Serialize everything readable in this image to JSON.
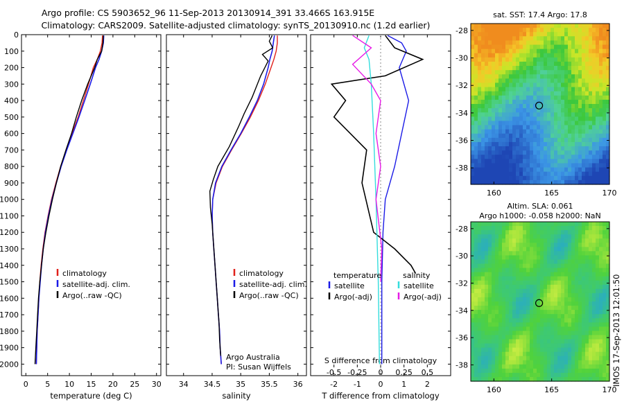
{
  "header": {
    "title_line1": "Argo profile: CS 5903652_96 11-Sep-2013 20130914_391 33.466S 163.915E",
    "title_line2": "Climatology: CARS2009. Satellite-adjusted climatology: synTS_20130910.nc (1.2d earlier)"
  },
  "side_label": "IMOS 17-Sep-2013 12:01:50",
  "colors": {
    "climatology": "#e0201a",
    "satellite": "#1a1ae6",
    "argo": "#000000",
    "sal_sat": "#33dddd",
    "sal_argo": "#e61ae6"
  },
  "chart_data": [
    {
      "id": "temperature",
      "type": "line",
      "xlabel": "temperature (deg C)",
      "xlim": [
        -1,
        31
      ],
      "xticks": [
        0,
        5,
        10,
        15,
        20,
        25,
        30
      ],
      "xtick_labels": [
        "0",
        "5",
        "10",
        "15",
        "20",
        "25",
        "30"
      ],
      "ylim": [
        0,
        2070
      ],
      "yticks": [
        0,
        100,
        200,
        300,
        400,
        500,
        600,
        700,
        800,
        900,
        1000,
        1100,
        1200,
        1300,
        1400,
        1500,
        1600,
        1700,
        1800,
        1900,
        2000
      ],
      "ytick_labels": [
        "0",
        "100",
        "200",
        "300",
        "400",
        "500",
        "600",
        "700",
        "800",
        "900",
        "1000",
        "1100",
        "1200",
        "1300",
        "1400",
        "1500",
        "1600",
        "1700",
        "1800",
        "1900",
        "2000"
      ],
      "legend": [
        "climatology",
        "satellite-adj. clim.",
        "Argo(..raw -QC)"
      ],
      "series": [
        {
          "name": "climatology",
          "color": "#e0201a",
          "points": [
            [
              17.6,
              5
            ],
            [
              17.5,
              50
            ],
            [
              17.1,
              100
            ],
            [
              16.4,
              150
            ],
            [
              15.5,
              200
            ],
            [
              14.4,
              300
            ],
            [
              13.2,
              400
            ],
            [
              12.0,
              500
            ],
            [
              10.6,
              600
            ],
            [
              9.3,
              700
            ],
            [
              8.0,
              800
            ],
            [
              6.9,
              900
            ],
            [
              5.9,
              1000
            ],
            [
              5.1,
              1100
            ],
            [
              4.4,
              1200
            ],
            [
              3.9,
              1300
            ],
            [
              3.5,
              1400
            ],
            [
              3.2,
              1500
            ],
            [
              3.0,
              1600
            ],
            [
              2.8,
              1700
            ],
            [
              2.6,
              1800
            ],
            [
              2.5,
              1900
            ],
            [
              2.4,
              2000
            ]
          ]
        },
        {
          "name": "satellite-adj. clim.",
          "color": "#1a1ae6",
          "points": [
            [
              17.9,
              5
            ],
            [
              17.8,
              50
            ],
            [
              17.4,
              100
            ],
            [
              16.8,
              150
            ],
            [
              16.0,
              200
            ],
            [
              14.8,
              300
            ],
            [
              13.5,
              400
            ],
            [
              12.2,
              500
            ],
            [
              10.8,
              600
            ],
            [
              9.4,
              700
            ],
            [
              8.1,
              800
            ],
            [
              7.0,
              900
            ],
            [
              6.0,
              1000
            ],
            [
              5.2,
              1100
            ],
            [
              4.5,
              1200
            ],
            [
              4.0,
              1300
            ],
            [
              3.6,
              1400
            ],
            [
              3.3,
              1500
            ],
            [
              3.0,
              1600
            ],
            [
              2.8,
              1700
            ],
            [
              2.6,
              1800
            ],
            [
              2.5,
              1900
            ],
            [
              2.4,
              2000
            ]
          ]
        },
        {
          "name": "Argo(..raw -QC)",
          "color": "#000000",
          "points": [
            [
              17.8,
              5
            ],
            [
              17.7,
              50
            ],
            [
              17.4,
              100
            ],
            [
              16.4,
              150
            ],
            [
              15.8,
              200
            ],
            [
              14.2,
              300
            ],
            [
              12.8,
              400
            ],
            [
              11.6,
              500
            ],
            [
              10.5,
              600
            ],
            [
              9.2,
              700
            ],
            [
              8.0,
              800
            ],
            [
              7.0,
              900
            ],
            [
              6.1,
              1000
            ],
            [
              5.3,
              1100
            ],
            [
              4.6,
              1200
            ],
            [
              4.0,
              1300
            ],
            [
              3.6,
              1400
            ],
            [
              3.2,
              1500
            ],
            [
              2.9,
              1600
            ],
            [
              2.7,
              1700
            ],
            [
              2.5,
              1800
            ],
            [
              2.3,
              1900
            ],
            [
              2.1,
              2000
            ]
          ]
        }
      ]
    },
    {
      "id": "salinity",
      "type": "line",
      "xlabel": "salinity",
      "xlim": [
        33.7,
        36.15
      ],
      "xticks": [
        34,
        34.5,
        35,
        35.5,
        36
      ],
      "xtick_labels": [
        "34",
        "34.5",
        "35",
        "35.5",
        "36"
      ],
      "ylim": [
        0,
        2070
      ],
      "legend": [
        "climatology",
        "satellite-adj. clim.",
        "Argo(..raw -QC)"
      ],
      "annotation": [
        "Argo Australia",
        "PI: Susan Wijffels"
      ],
      "series": [
        {
          "name": "climatology",
          "color": "#e0201a",
          "points": [
            [
              35.64,
              5
            ],
            [
              35.64,
              50
            ],
            [
              35.62,
              100
            ],
            [
              35.58,
              150
            ],
            [
              35.53,
              200
            ],
            [
              35.43,
              300
            ],
            [
              35.31,
              400
            ],
            [
              35.17,
              500
            ],
            [
              35.01,
              600
            ],
            [
              34.84,
              700
            ],
            [
              34.68,
              800
            ],
            [
              34.57,
              900
            ],
            [
              34.51,
              1000
            ],
            [
              34.5,
              1100
            ],
            [
              34.51,
              1200
            ],
            [
              34.53,
              1300
            ],
            [
              34.55,
              1400
            ],
            [
              34.57,
              1500
            ],
            [
              34.59,
              1600
            ],
            [
              34.61,
              1700
            ],
            [
              34.63,
              1800
            ],
            [
              34.64,
              1900
            ],
            [
              34.66,
              2000
            ]
          ]
        },
        {
          "name": "satellite-adj. clim.",
          "color": "#1a1ae6",
          "points": [
            [
              35.59,
              5
            ],
            [
              35.57,
              50
            ],
            [
              35.55,
              100
            ],
            [
              35.51,
              150
            ],
            [
              35.48,
              200
            ],
            [
              35.4,
              300
            ],
            [
              35.29,
              400
            ],
            [
              35.15,
              500
            ],
            [
              35.0,
              600
            ],
            [
              34.83,
              700
            ],
            [
              34.67,
              800
            ],
            [
              34.56,
              900
            ],
            [
              34.51,
              1000
            ],
            [
              34.5,
              1100
            ],
            [
              34.51,
              1200
            ],
            [
              34.53,
              1300
            ],
            [
              34.55,
              1400
            ],
            [
              34.57,
              1500
            ],
            [
              34.59,
              1600
            ],
            [
              34.61,
              1700
            ],
            [
              34.63,
              1800
            ],
            [
              34.64,
              1900
            ],
            [
              34.66,
              2000
            ]
          ]
        },
        {
          "name": "Argo(..raw -QC)",
          "color": "#000000",
          "points": [
            [
              35.55,
              5
            ],
            [
              35.5,
              40
            ],
            [
              35.56,
              80
            ],
            [
              35.38,
              120
            ],
            [
              35.48,
              160
            ],
            [
              35.35,
              250
            ],
            [
              35.2,
              380
            ],
            [
              35.06,
              480
            ],
            [
              34.96,
              560
            ],
            [
              34.8,
              680
            ],
            [
              34.6,
              800
            ],
            [
              34.52,
              880
            ],
            [
              34.46,
              950
            ],
            [
              34.47,
              1050
            ],
            [
              34.5,
              1150
            ],
            [
              34.52,
              1250
            ],
            [
              34.54,
              1350
            ],
            [
              34.56,
              1450
            ],
            [
              34.58,
              1550
            ],
            [
              34.6,
              1650
            ],
            [
              34.62,
              1750
            ],
            [
              34.63,
              1850
            ],
            [
              34.65,
              1950
            ]
          ]
        }
      ]
    },
    {
      "id": "differences",
      "type": "line",
      "xlabel": "T difference from climatology",
      "xlabel_top": "S difference from climatology",
      "xlim": [
        -3,
        3
      ],
      "xticks": [
        -2,
        -1,
        0,
        1,
        2
      ],
      "xtick_labels": [
        "-2",
        "-1",
        "0",
        "1",
        "2"
      ],
      "sticks": [
        -0.5,
        -0.25,
        0,
        0.25,
        0.5
      ],
      "stick_labels": [
        "-0.5",
        "-0.25",
        "0",
        "0.25",
        "0.5"
      ],
      "ylim": [
        0,
        2070
      ],
      "legend_headers": [
        "temperature",
        "salinity"
      ],
      "legend": [
        "satellite",
        "Argo(-adj)",
        "satellite",
        "Argo(-adj)"
      ],
      "series": [
        {
          "name": "satellite",
          "color": "#1a1ae6",
          "points": [
            [
              0.3,
              5
            ],
            [
              0.9,
              50
            ],
            [
              1.1,
              100
            ],
            [
              0.8,
              200
            ],
            [
              1.2,
              400
            ],
            [
              0.9,
              600
            ],
            [
              0.6,
              800
            ],
            [
              0.2,
              1000
            ],
            [
              0.1,
              1200
            ],
            [
              0.05,
              1500
            ],
            [
              0.05,
              2000
            ]
          ]
        },
        {
          "name": "Argo(-adj)",
          "color": "#000000",
          "points": [
            [
              0.2,
              5
            ],
            [
              0.6,
              80
            ],
            [
              1.8,
              150
            ],
            [
              0.2,
              250
            ],
            [
              -2.1,
              300
            ],
            [
              -1.5,
              400
            ],
            [
              -2.0,
              500
            ],
            [
              -0.6,
              700
            ],
            [
              -0.8,
              900
            ],
            [
              -0.3,
              1200
            ],
            [
              0.6,
              1300
            ],
            [
              1.3,
              1400
            ],
            [
              1.5,
              1450
            ]
          ]
        },
        {
          "name": "satellite",
          "color": "#33dddd",
          "points": [
            [
              -0.5,
              5
            ],
            [
              -0.7,
              80
            ],
            [
              -0.5,
              150
            ],
            [
              -0.4,
              300
            ],
            [
              -0.3,
              600
            ],
            [
              -0.2,
              1000
            ],
            [
              -0.1,
              1500
            ],
            [
              -0.05,
              2000
            ]
          ]
        },
        {
          "name": "Argo(-adj)",
          "color": "#e61ae6",
          "points": [
            [
              -1.2,
              5
            ],
            [
              -0.4,
              80
            ],
            [
              -1.2,
              180
            ],
            [
              -0.4,
              300
            ],
            [
              0.0,
              400
            ],
            [
              -0.2,
              600
            ],
            [
              0.0,
              800
            ],
            [
              -0.2,
              1000
            ],
            [
              0.05,
              1300
            ],
            [
              0.0,
              1500
            ]
          ]
        }
      ]
    },
    {
      "id": "sst-map",
      "type": "heatmap",
      "title": "sat. SST: 17.4 Argo: 17.8",
      "xlim": [
        158,
        170
      ],
      "ylim": [
        -39.2,
        -27.5
      ],
      "xticks": [
        160,
        165,
        170
      ],
      "xtick_labels": [
        "160",
        "165",
        "170"
      ],
      "yticks": [
        -28,
        -30,
        -32,
        -34,
        -36,
        -38
      ],
      "ytick_labels": [
        "-28",
        "-30",
        "-32",
        "-34",
        "-36",
        "-38"
      ],
      "marker": [
        163.915,
        -33.466
      ]
    },
    {
      "id": "sla-map",
      "type": "heatmap",
      "title_line1": "Altim. SLA: 0.061",
      "title_line2": "Argo h1000: -0.058 h2000: NaN",
      "xlim": [
        158,
        170
      ],
      "ylim": [
        -39.2,
        -27.5
      ],
      "xticks": [
        160,
        165,
        170
      ],
      "xtick_labels": [
        "160",
        "165",
        "170"
      ],
      "yticks": [
        -28,
        -30,
        -32,
        -34,
        -36,
        -38
      ],
      "ytick_labels": [
        "-28",
        "-30",
        "-32",
        "-34",
        "-36",
        "-38"
      ],
      "marker": [
        163.915,
        -33.466
      ]
    }
  ]
}
